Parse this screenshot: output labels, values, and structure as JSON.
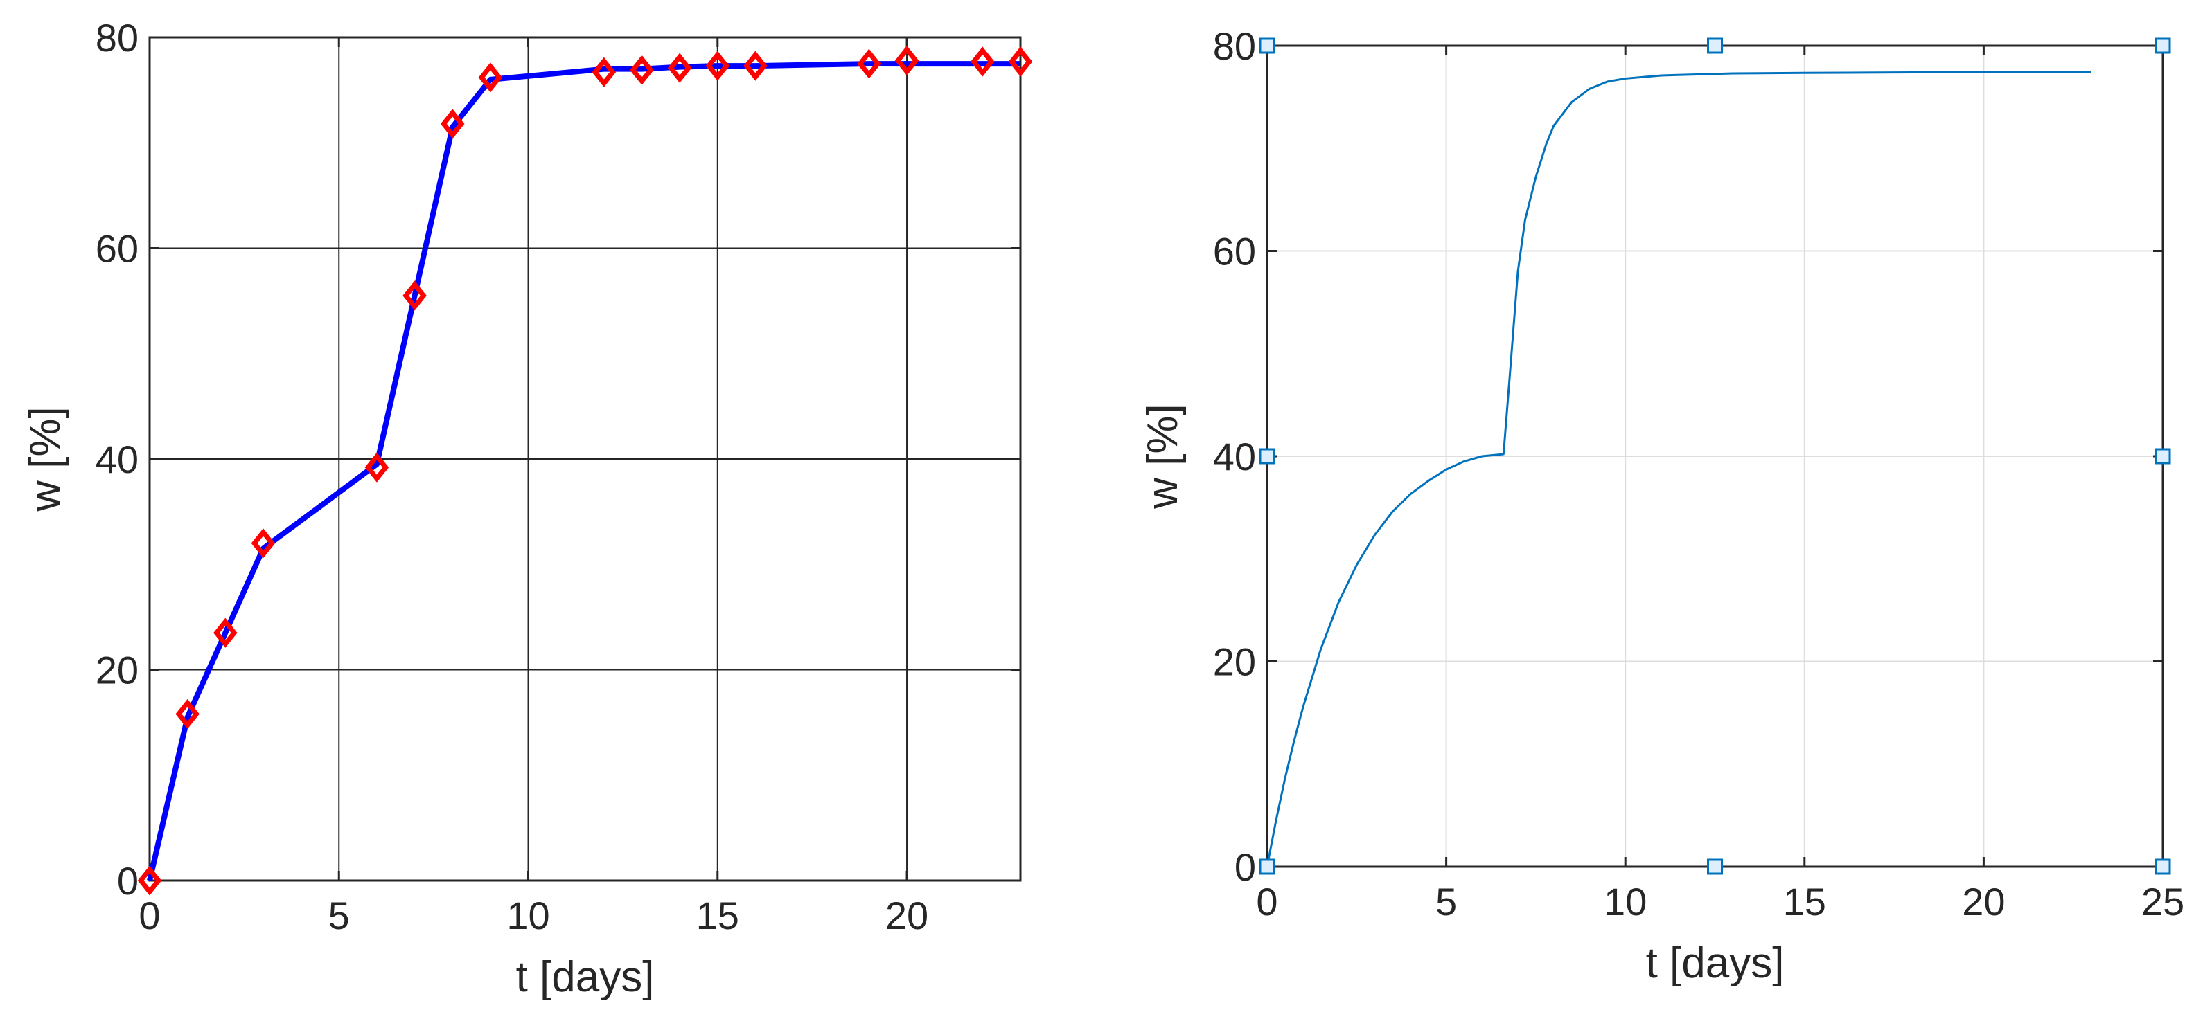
{
  "chart_data": [
    {
      "type": "line",
      "xlabel": "t [days]",
      "ylabel": "w [%]",
      "xlim": [
        0,
        23
      ],
      "ylim": [
        0,
        80
      ],
      "xticks": [
        0,
        5,
        10,
        15,
        20
      ],
      "yticks": [
        0,
        20,
        40,
        60,
        80
      ],
      "grid": true,
      "colors": {
        "line": "#0000ff",
        "marker": "#ff0000",
        "grid": "#262626"
      },
      "series": [
        {
          "style": "line",
          "x": [
            0,
            1,
            2,
            3,
            6,
            7,
            8,
            9,
            12,
            13,
            14,
            15,
            16,
            19,
            20,
            22,
            23
          ],
          "y": [
            0,
            15.5,
            23.5,
            31.5,
            39.5,
            55.5,
            71.5,
            76,
            77,
            77,
            77.2,
            77.3,
            77.3,
            77.5,
            77.5,
            77.5,
            77.5
          ]
        },
        {
          "style": "markers",
          "marker": "diamond",
          "x": [
            0,
            1,
            2,
            3,
            6,
            7,
            8,
            9,
            12,
            13,
            14,
            15,
            16,
            19,
            20,
            22,
            23
          ],
          "y": [
            0,
            15.8,
            23.5,
            32,
            39.2,
            55.5,
            71.8,
            76.2,
            76.7,
            76.9,
            77.1,
            77.3,
            77.3,
            77.5,
            77.8,
            77.7,
            77.7
          ]
        }
      ]
    },
    {
      "type": "line",
      "xlabel": "t [days]",
      "ylabel": "w [%]",
      "xlim": [
        0,
        25
      ],
      "ylim": [
        0,
        80
      ],
      "xticks": [
        0,
        5,
        10,
        15,
        20,
        25
      ],
      "yticks": [
        0,
        20,
        40,
        60,
        80
      ],
      "grid": true,
      "colors": {
        "line": "#0072bd",
        "marker": "#0072bd",
        "marker_fill": "#ddeeff",
        "grid": "#dddddd"
      },
      "series": [
        {
          "style": "line",
          "x": [
            0,
            0.25,
            0.5,
            0.75,
            1,
            1.5,
            2,
            2.5,
            3,
            3.5,
            4,
            4.5,
            5,
            5.5,
            6,
            6.6,
            6.8,
            7,
            7.2,
            7.5,
            7.8,
            8,
            8.5,
            9,
            9.5,
            10,
            11,
            12,
            13,
            15,
            18,
            20,
            23
          ],
          "y": [
            0,
            4.5,
            8.6,
            12.2,
            15.5,
            21.2,
            25.8,
            29.4,
            32.3,
            34.6,
            36.3,
            37.6,
            38.7,
            39.5,
            40.0,
            40.2,
            49,
            58,
            63,
            67.2,
            70.5,
            72.2,
            74.5,
            75.8,
            76.5,
            76.8,
            77.1,
            77.2,
            77.3,
            77.35,
            77.4,
            77.4,
            77.4
          ]
        },
        {
          "style": "markers",
          "marker": "square",
          "x": [
            0,
            12.5,
            25,
            0,
            25,
            0,
            12.5,
            25
          ],
          "y": [
            80,
            80,
            80,
            40,
            40,
            0,
            0,
            0
          ]
        }
      ]
    }
  ]
}
